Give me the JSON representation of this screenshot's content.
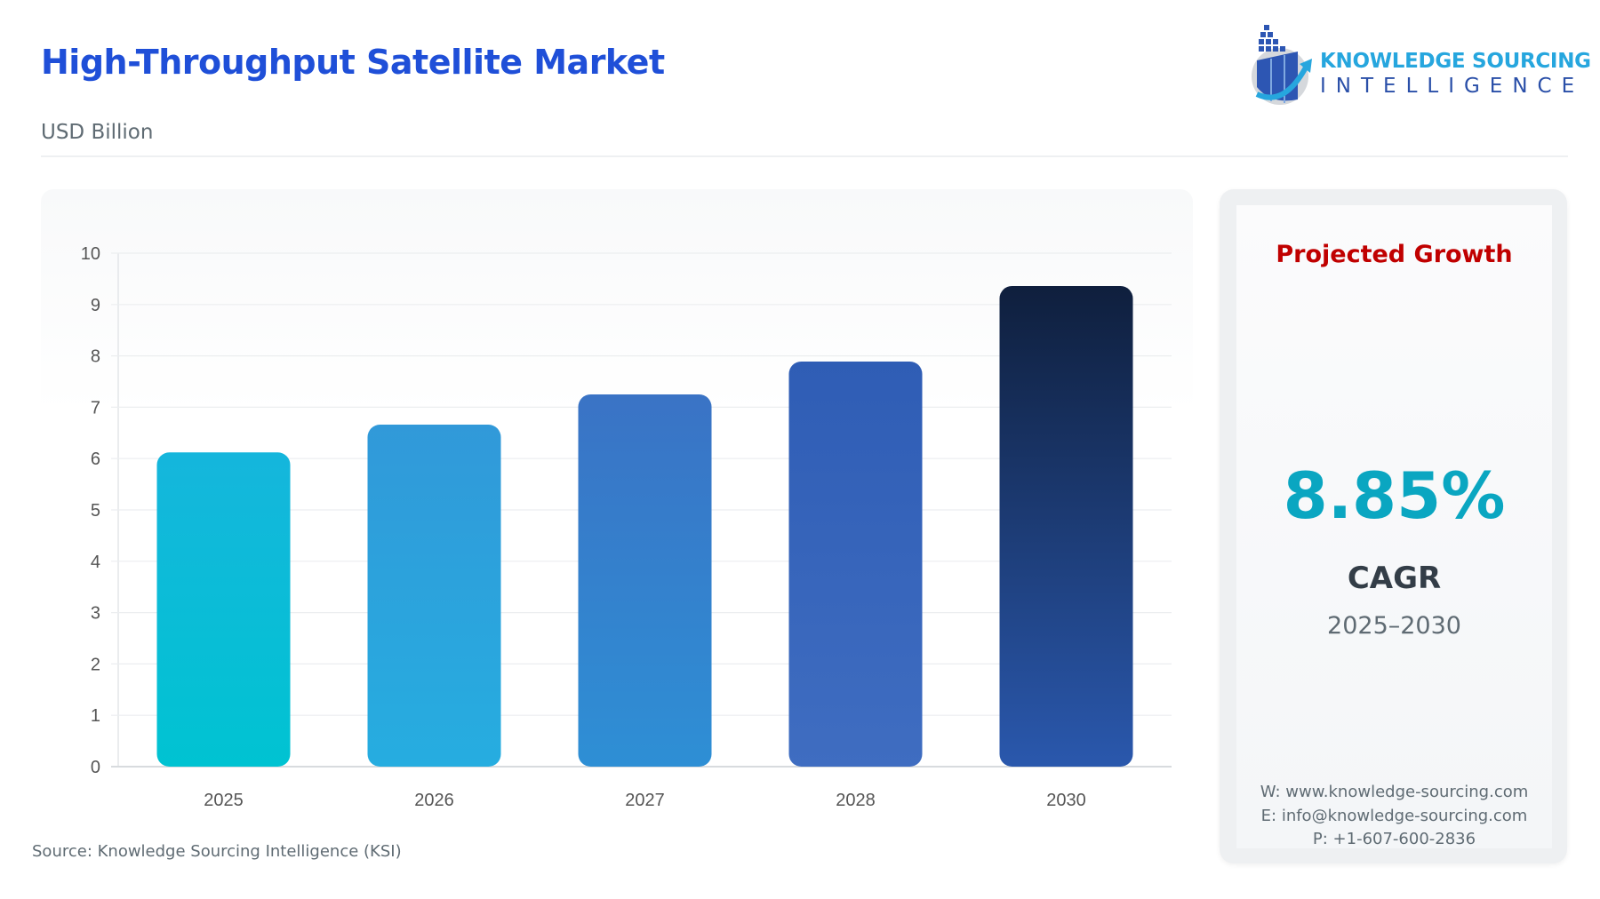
{
  "header": {
    "title": "High-Throughput Satellite Market",
    "unit": "USD Billion"
  },
  "logo": {
    "line1": "KNOWLEDGE SOURCING",
    "line2": "INTELLIGENCE"
  },
  "source": "Source: Knowledge Sourcing Intelligence (KSI)",
  "side_panel": {
    "heading": "Projected Growth",
    "cagr_value": "8.85%",
    "cagr_label": "CAGR",
    "period": "2025–2030",
    "website": "W: www.knowledge-sourcing.com",
    "email": "E: info@knowledge-sourcing.com",
    "phone": "P: +1-607-600-2836",
    "colors": {
      "heading": "#c00000",
      "value": "#0aa6c1"
    }
  },
  "chart_data": {
    "type": "bar",
    "categories": [
      "2025",
      "2026",
      "2027",
      "2028",
      "2030"
    ],
    "values": [
      6.12,
      6.66,
      7.25,
      7.89,
      9.36
    ],
    "ylim": [
      0,
      10
    ],
    "yticks": [
      0,
      1,
      2,
      3,
      4,
      5,
      6,
      7,
      8,
      9,
      10
    ],
    "grid": true,
    "bar_colors": [
      [
        "#15b6dc",
        "#00c3d2"
      ],
      [
        "#3199d9",
        "#26ade0"
      ],
      [
        "#3a73c5",
        "#2e8fd5"
      ],
      [
        "#2f5db5",
        "#3f6dc1"
      ],
      [
        "#0f1f3d",
        "#2a58ad"
      ]
    ]
  }
}
